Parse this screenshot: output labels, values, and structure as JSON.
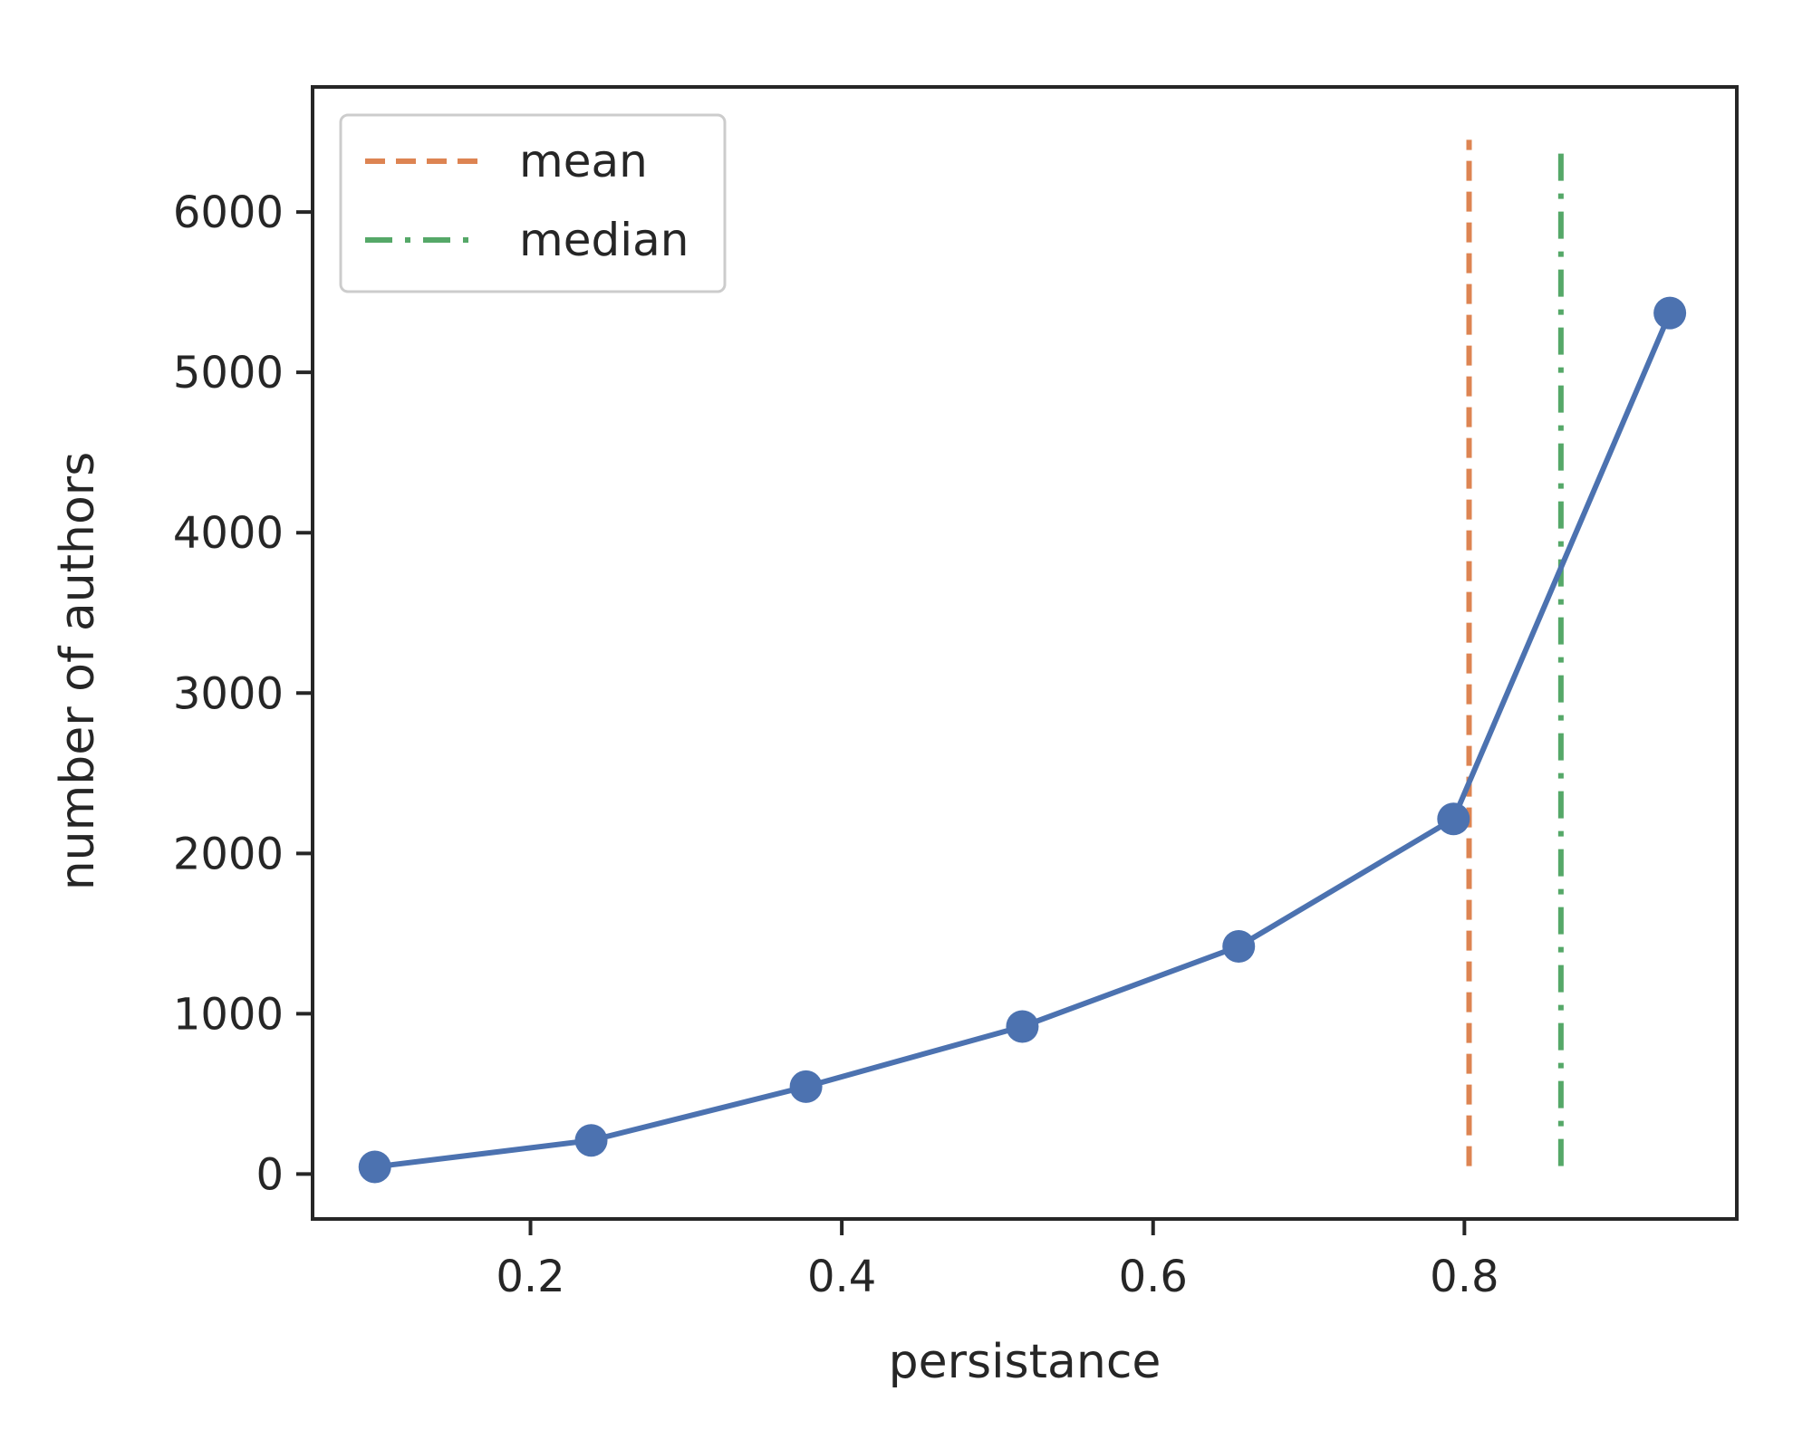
{
  "chart_data": {
    "type": "line",
    "title": "",
    "xlabel": "persistance",
    "ylabel": "number of authors",
    "xlim": [
      0.06,
      0.975
    ],
    "ylim": [
      -280,
      6780
    ],
    "xticks": [
      0.2,
      0.4,
      0.6,
      0.8
    ],
    "xtick_labels": [
      "0.2",
      "0.4",
      "0.6",
      "0.8"
    ],
    "yticks": [
      0,
      1000,
      2000,
      3000,
      4000,
      5000,
      6000
    ],
    "ytick_labels": [
      "0",
      "1000",
      "2000",
      "3000",
      "4000",
      "5000",
      "6000"
    ],
    "grid": false,
    "legend_position": "top-left",
    "series": [
      {
        "x": [
          0.1,
          0.239,
          0.377,
          0.516,
          0.655,
          0.793,
          0.932
        ],
        "values": [
          45,
          210,
          545,
          920,
          1420,
          2215,
          5370
        ],
        "color": "#4c72b0",
        "marker": "circle"
      }
    ],
    "reference_lines": [
      {
        "name": "mean",
        "x": 0.803,
        "y_range": [
          50,
          6450
        ],
        "color": "#dd8452",
        "style": "dashed"
      },
      {
        "name": "median",
        "x": 0.862,
        "y_range": [
          50,
          6380
        ],
        "color": "#55a868",
        "style": "dashdot"
      }
    ]
  }
}
